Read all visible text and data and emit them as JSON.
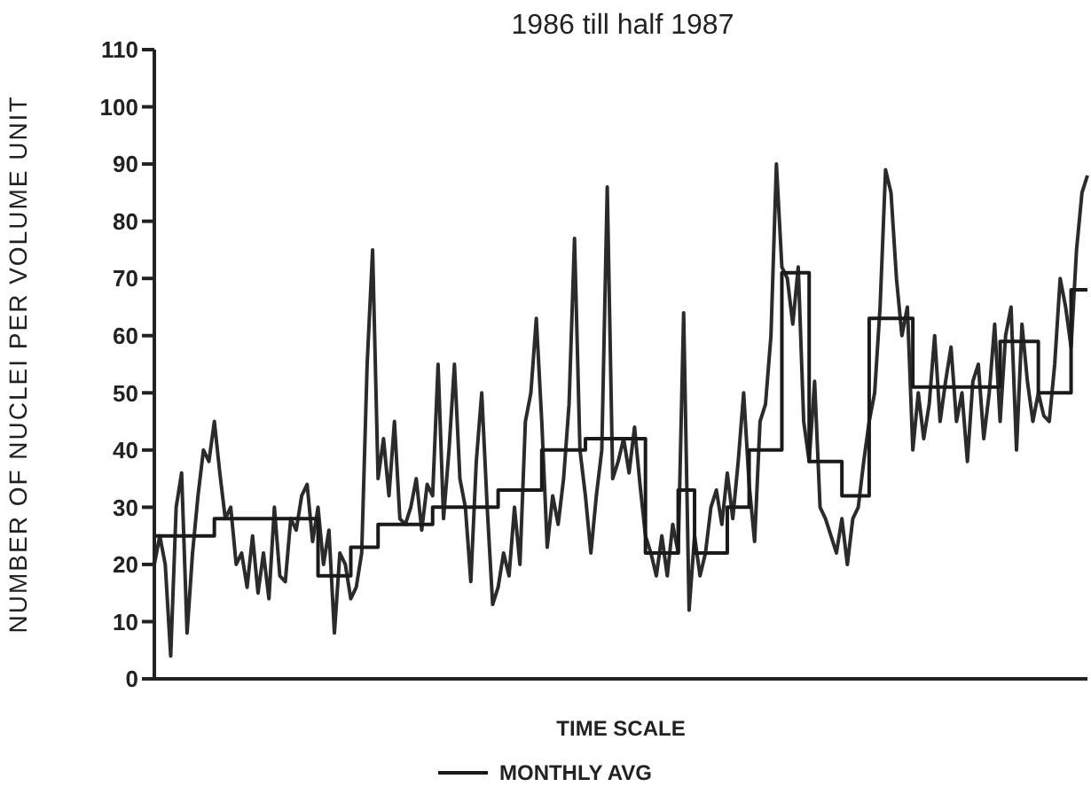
{
  "chart_data": {
    "type": "line",
    "title": "1986 till half 1987",
    "xlabel": "TIME SCALE",
    "ylabel": "NUMBER OF NUCLEI PER VOLUME UNIT",
    "legend": "bottom",
    "marker": "none",
    "grid": false,
    "categories": [
      null,
      null,
      null,
      null,
      null,
      null,
      null,
      null,
      null,
      null,
      null,
      null,
      null,
      null,
      null,
      null,
      null,
      null,
      null,
      null,
      null,
      null,
      null,
      null,
      null,
      null,
      null,
      null,
      null,
      null,
      null,
      null,
      null,
      null,
      null,
      null,
      null,
      null,
      null,
      null,
      null,
      null,
      null,
      null,
      null,
      null,
      null,
      null,
      null,
      null,
      null,
      null,
      null,
      null,
      null,
      null,
      null,
      null,
      null,
      null,
      null,
      null,
      null,
      null,
      null,
      null,
      null,
      null,
      null,
      null,
      null,
      null,
      null,
      null,
      null,
      null,
      null,
      null,
      null,
      null,
      null,
      null,
      null,
      null,
      null,
      null,
      null,
      null,
      null,
      null,
      null,
      null,
      null,
      null,
      null,
      null,
      null,
      null,
      null,
      null,
      null,
      null,
      null,
      null,
      null,
      null,
      null,
      null,
      null,
      null,
      null,
      null,
      null,
      null,
      null,
      null,
      null,
      null,
      null,
      null,
      null,
      null,
      null,
      null,
      null,
      null,
      null,
      null,
      null,
      null,
      null,
      null,
      null,
      null,
      null,
      null,
      null,
      null,
      null,
      null,
      null,
      null,
      null,
      null,
      null,
      null,
      null,
      null,
      null,
      null,
      null,
      null,
      null,
      null,
      null,
      null,
      null,
      null,
      null,
      null,
      null,
      null,
      null,
      null,
      null,
      null,
      null,
      null,
      null,
      null,
      null,
      null
    ],
    "ylim": [
      0,
      110
    ],
    "yticks": [
      0,
      10,
      20,
      30,
      40,
      50,
      60,
      70,
      80,
      90,
      100,
      110
    ],
    "series": [
      {
        "color": "#2b2b2b",
        "values": [
          20,
          25,
          20,
          4,
          30,
          36,
          8,
          22,
          32,
          40,
          38,
          45,
          36,
          28,
          30,
          20,
          22,
          16,
          25,
          15,
          22,
          14,
          30,
          18,
          17,
          28,
          26,
          32,
          34,
          24,
          30,
          20,
          26,
          8,
          22,
          20,
          14,
          16,
          22,
          55,
          75,
          35,
          42,
          32,
          45,
          28,
          27,
          30,
          35,
          26,
          34,
          32,
          55,
          28,
          40,
          55,
          35,
          30,
          17,
          38,
          50,
          30,
          13,
          16,
          22,
          18,
          30,
          20,
          45,
          50,
          63,
          45,
          23,
          32,
          27,
          35,
          48,
          77,
          40,
          32,
          22,
          32,
          40,
          86,
          35,
          38,
          42,
          36,
          44,
          34,
          25,
          22,
          18,
          25,
          18,
          27,
          22,
          64,
          12,
          25,
          18,
          22,
          30,
          33,
          27,
          36,
          28,
          38,
          50,
          34,
          24,
          45,
          48,
          60,
          90,
          72,
          70,
          62,
          72,
          45,
          38,
          52,
          30,
          28,
          25,
          22,
          28,
          20,
          28,
          30,
          38,
          45,
          50,
          65,
          89,
          85,
          70,
          60,
          65,
          40,
          50,
          42,
          48,
          60,
          45,
          52,
          58,
          45,
          50,
          38,
          52,
          55,
          42,
          50,
          62,
          45,
          60,
          65,
          40,
          62,
          52,
          45,
          50,
          46,
          45,
          55,
          70,
          65,
          58,
          75,
          85,
          88
        ]
      },
      {
        "name": "MONTHLY AVG",
        "type": "step",
        "color": "#1a1a1a",
        "values": [
          25,
          25,
          25,
          25,
          25,
          25,
          25,
          25,
          25,
          25,
          25,
          28,
          28,
          28,
          28,
          28,
          28,
          28,
          28,
          28,
          28,
          28,
          28,
          28,
          28,
          28,
          28,
          28,
          28,
          28,
          18,
          18,
          18,
          18,
          18,
          18,
          23,
          23,
          23,
          23,
          23,
          27,
          27,
          27,
          27,
          27,
          27,
          27,
          27,
          27,
          27,
          30,
          30,
          30,
          30,
          30,
          30,
          30,
          30,
          30,
          30,
          30,
          30,
          33,
          33,
          33,
          33,
          33,
          33,
          33,
          33,
          40,
          40,
          40,
          40,
          40,
          40,
          40,
          40,
          42,
          42,
          42,
          42,
          42,
          42,
          42,
          42,
          42,
          42,
          42,
          22,
          22,
          22,
          22,
          22,
          22,
          33,
          33,
          33,
          22,
          22,
          22,
          22,
          22,
          22,
          30,
          30,
          30,
          30,
          40,
          40,
          40,
          40,
          40,
          40,
          71,
          71,
          71,
          71,
          71,
          38,
          38,
          38,
          38,
          38,
          38,
          32,
          32,
          32,
          32,
          32,
          63,
          63,
          63,
          63,
          63,
          63,
          63,
          63,
          51,
          51,
          51,
          51,
          51,
          51,
          51,
          51,
          51,
          51,
          51,
          51,
          51,
          51,
          51,
          51,
          59,
          59,
          59,
          59,
          59,
          59,
          59,
          50,
          50,
          50,
          50,
          50,
          50,
          68,
          68,
          68,
          68
        ]
      }
    ]
  }
}
